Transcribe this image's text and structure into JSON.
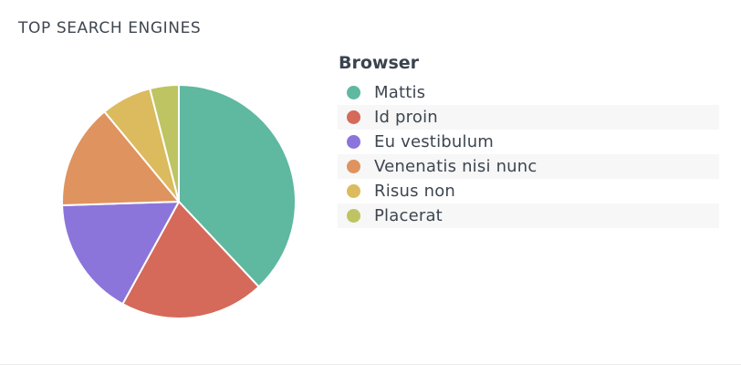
{
  "widget": {
    "title": "TOP SEARCH ENGINES"
  },
  "legend": {
    "title": "Browser"
  },
  "chart_data": {
    "type": "pie",
    "title": "TOP SEARCH ENGINES",
    "legend_title": "Browser",
    "legend_position": "right",
    "start_angle_deg": 0,
    "slice_border_color": "#ffffff",
    "categories": [
      "Mattis",
      "Id proin",
      "Eu vestibulum",
      "Venenatis nisi nunc",
      "Risus non",
      "Placerat"
    ],
    "values": [
      38,
      20,
      16.5,
      14.5,
      7,
      4
    ],
    "colors": [
      "#5fb8a0",
      "#d5695a",
      "#8b75db",
      "#df935e",
      "#dcba5e",
      "#bdc461"
    ]
  }
}
